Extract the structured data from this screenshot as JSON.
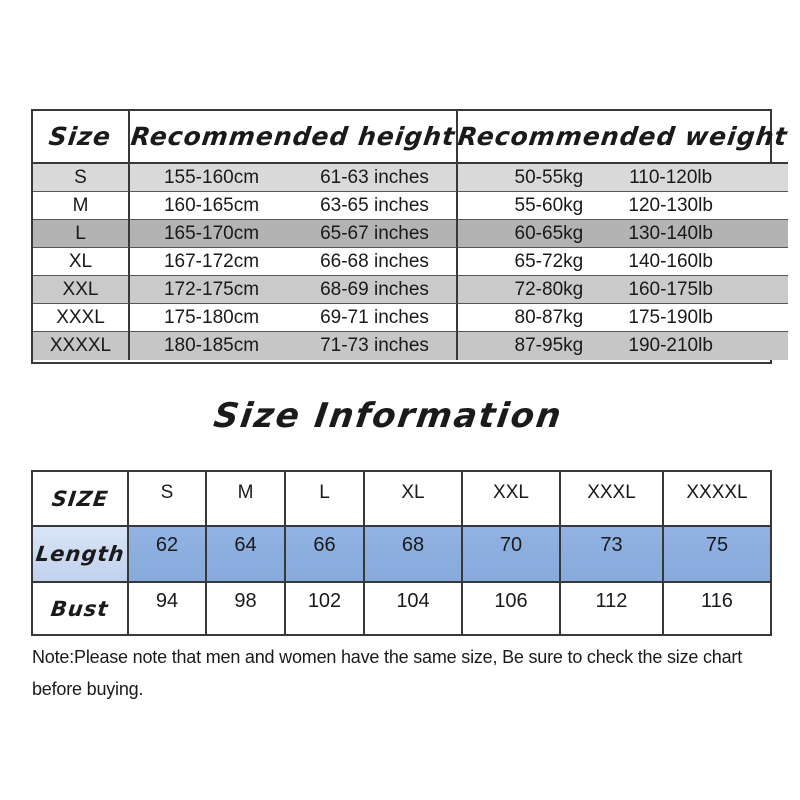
{
  "page": {
    "background": "#ffffff",
    "border_color": "#383838",
    "text_color": "#1a1a1a"
  },
  "top_table": {
    "headers": {
      "size": "Size",
      "height": "Recommended height",
      "weight": "Recommended weight"
    },
    "rows": [
      {
        "size": "S",
        "height_cm": "155-160cm",
        "height_inches": "61-63 inches",
        "weight_kg": "50-55kg",
        "weight_lb": "110-120lb",
        "row_bg": "#d9d9d9"
      },
      {
        "size": "M",
        "height_cm": "160-165cm",
        "height_inches": "63-65 inches",
        "weight_kg": "55-60kg",
        "weight_lb": "120-130lb",
        "row_bg": "#ffffff"
      },
      {
        "size": "L",
        "height_cm": "165-170cm",
        "height_inches": "65-67 inches",
        "weight_kg": "60-65kg",
        "weight_lb": "130-140lb",
        "row_bg": "#b3b3b3"
      },
      {
        "size": "XL",
        "height_cm": "167-172cm",
        "height_inches": "66-68 inches",
        "weight_kg": "65-72kg",
        "weight_lb": "140-160lb",
        "row_bg": "#ffffff"
      },
      {
        "size": "XXL",
        "height_cm": "172-175cm",
        "height_inches": "68-69 inches",
        "weight_kg": "72-80kg",
        "weight_lb": "160-175lb",
        "row_bg": "#cacaca"
      },
      {
        "size": "XXXL",
        "height_cm": "175-180cm",
        "height_inches": "69-71 inches",
        "weight_kg": "80-87kg",
        "weight_lb": "175-190lb",
        "row_bg": "#ffffff"
      },
      {
        "size": "XXXXL",
        "height_cm": "180-185cm",
        "height_inches": "71-73 inches",
        "weight_kg": "87-95kg",
        "weight_lb": "190-210lb",
        "row_bg": "#c6c6c6"
      }
    ]
  },
  "section_title": "Size Information",
  "bottom_table": {
    "corner_label": "SIZE",
    "size_headers": [
      "S",
      "M",
      "L",
      "XL",
      "XXL",
      "XXXL",
      "XXXXL"
    ],
    "rows": [
      {
        "label": "Length",
        "values": [
          "62",
          "64",
          "66",
          "68",
          "70",
          "73",
          "75"
        ],
        "label_bg_top": "#d9e4f6",
        "label_bg_bottom": "#c1d2ec",
        "value_bg_top": "#91b2e2",
        "value_bg_bottom": "#87aadc"
      },
      {
        "label": "Bust",
        "values": [
          "94",
          "98",
          "102",
          "104",
          "106",
          "112",
          "116"
        ],
        "label_bg_top": "#ffffff",
        "label_bg_bottom": "#ffffff",
        "value_bg_top": "#ffffff",
        "value_bg_bottom": "#ffffff"
      }
    ]
  },
  "note_text": "Note:Please note that men and women have the same size, Be sure to check the size chart before buying."
}
